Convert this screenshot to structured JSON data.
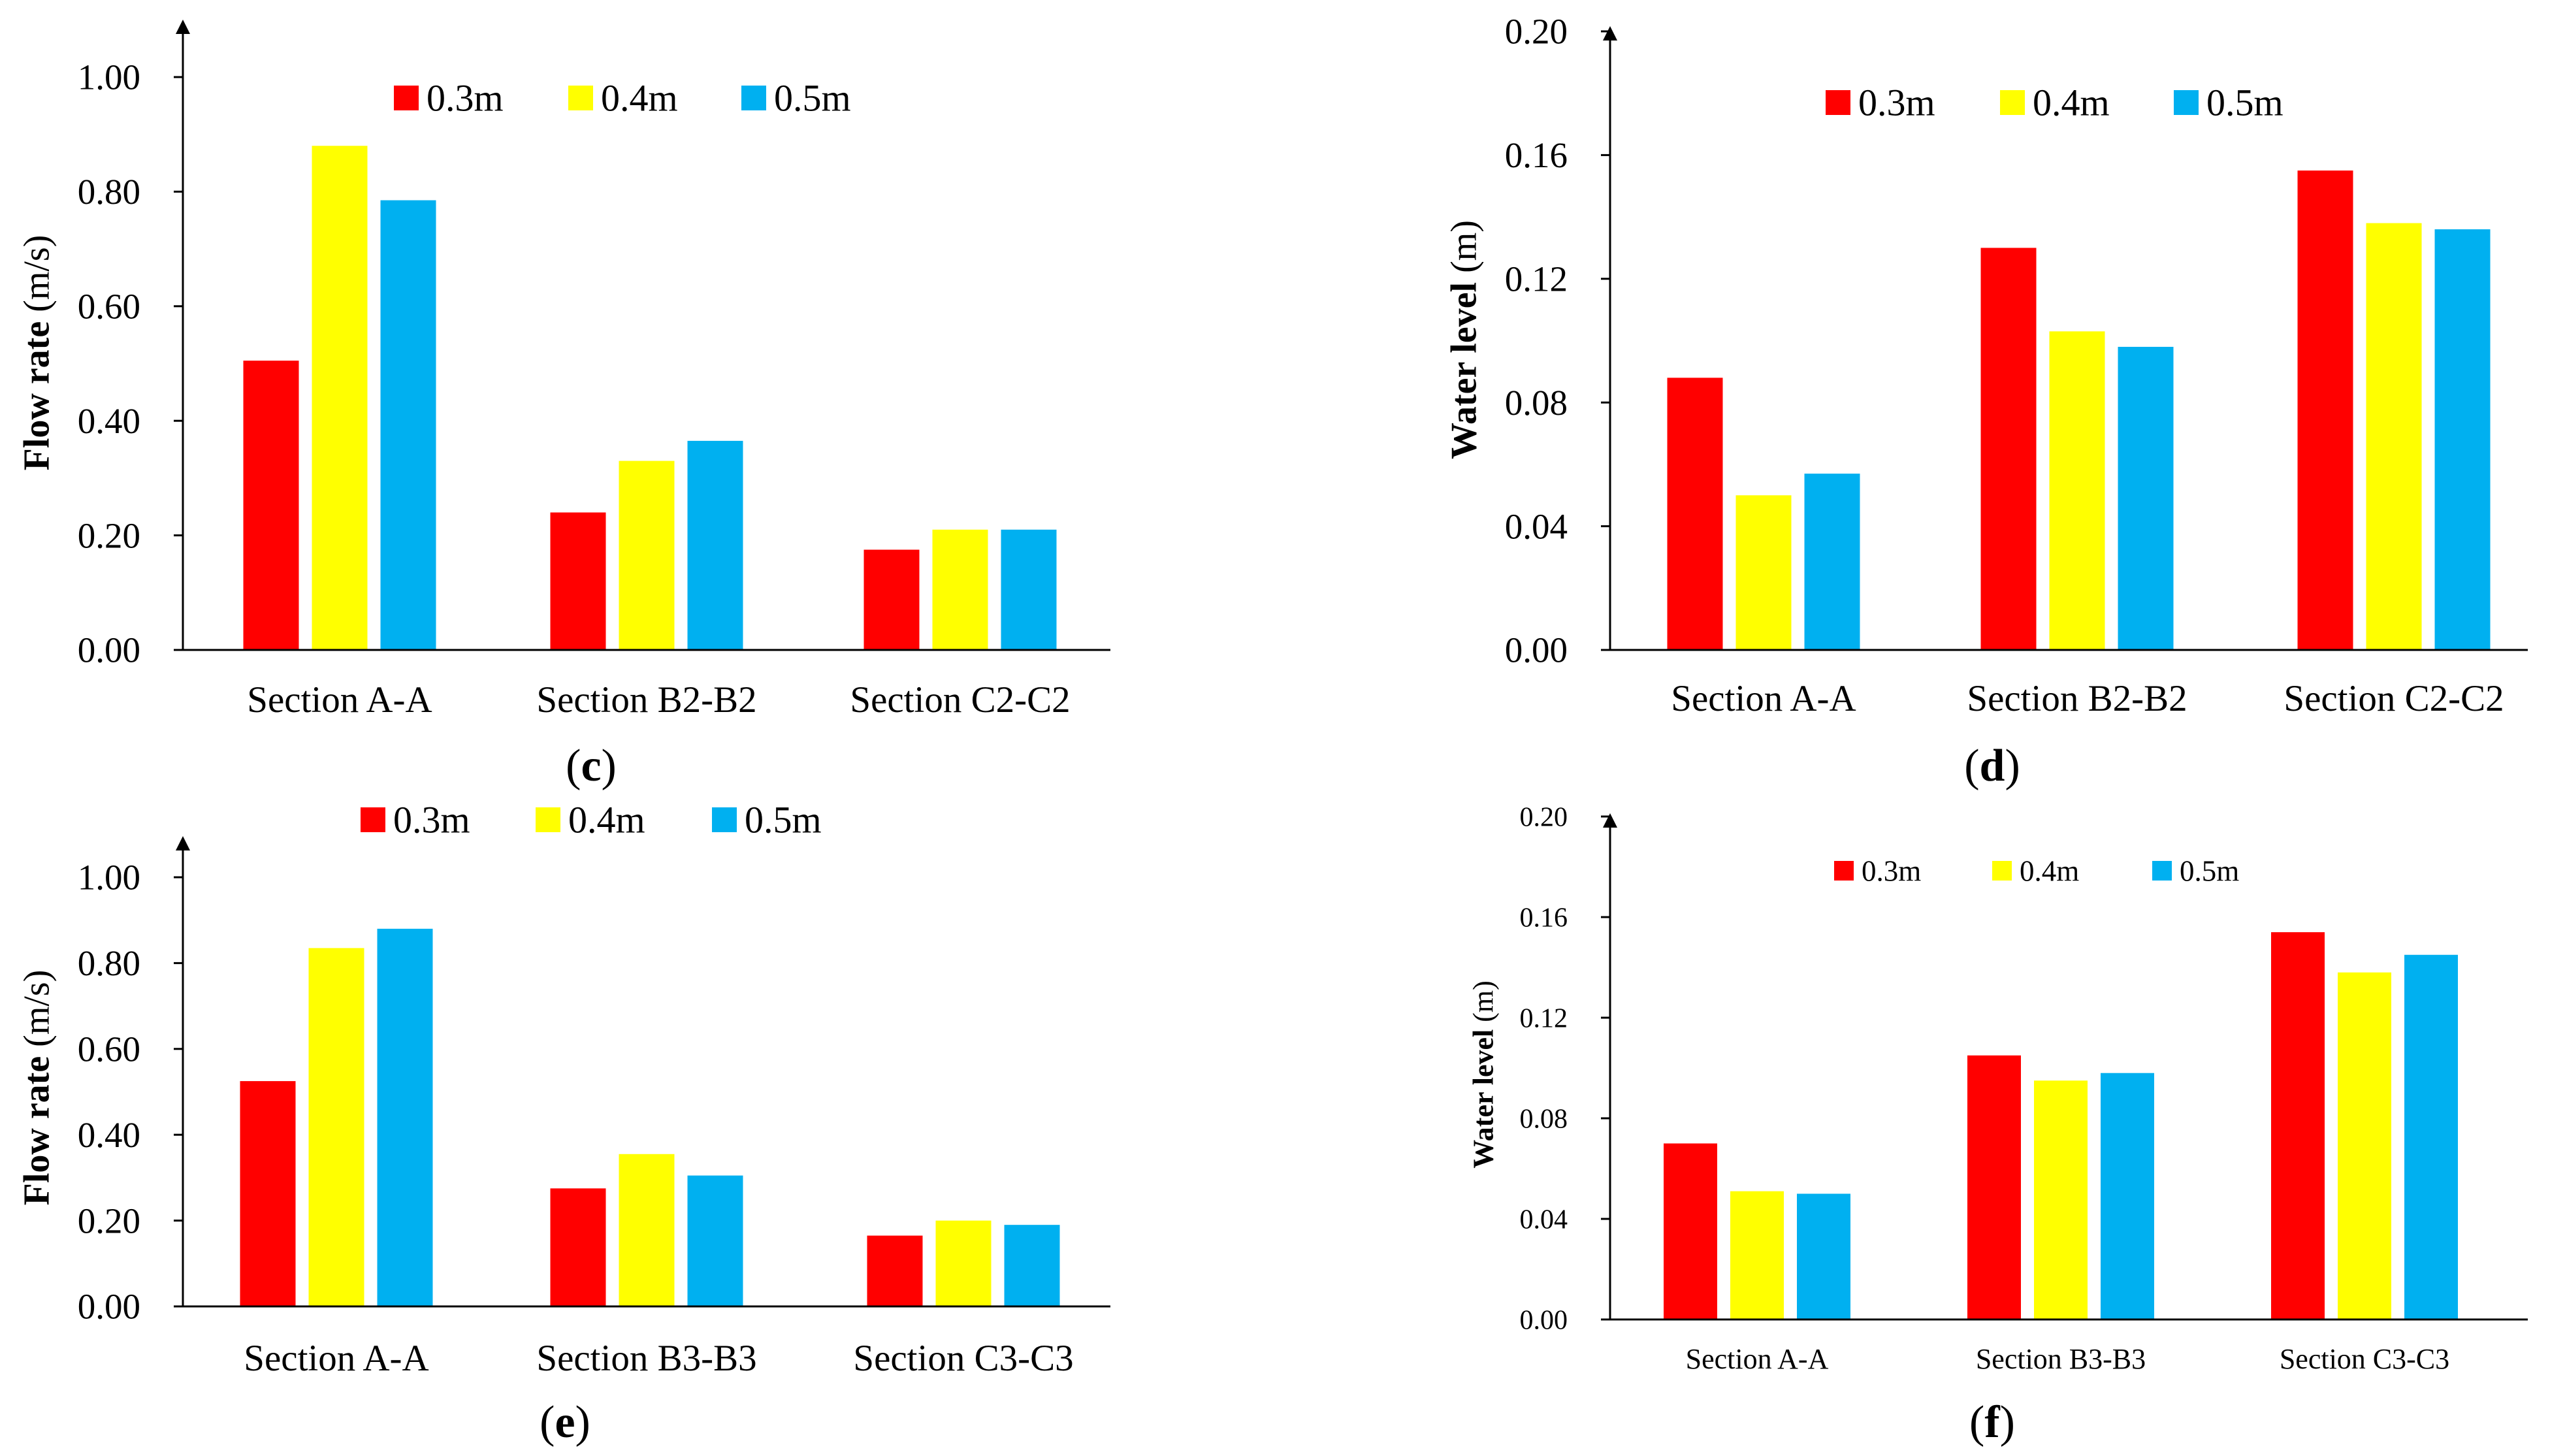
{
  "colors": {
    "s03": "#FF0000",
    "s04": "#FFFF00",
    "s05": "#00B0F0",
    "axis": "#000000"
  },
  "chart_data": [
    {
      "id": "c",
      "type": "bar",
      "panel_label": "c",
      "ylabel": "Flow rate (m/s)",
      "ylabel_bold": "Flow rate",
      "ylabel_unit": " (m/s)",
      "categories": [
        "Section A-A",
        "Section B2-B2",
        "Section C2-C2"
      ],
      "ylim": [
        0,
        1.0
      ],
      "yticks": [
        "0.00",
        "0.20",
        "0.40",
        "0.60",
        "0.80",
        "1.00"
      ],
      "ytick_values": [
        0,
        0.2,
        0.4,
        0.6,
        0.8,
        1.0
      ],
      "legend_placement": "top-center",
      "series": [
        {
          "name": "0.3m",
          "values": [
            0.505,
            0.24,
            0.175
          ]
        },
        {
          "name": "0.4m",
          "values": [
            0.88,
            0.33,
            0.21
          ]
        },
        {
          "name": "0.5m",
          "values": [
            0.785,
            0.365,
            0.21
          ]
        }
      ]
    },
    {
      "id": "d",
      "type": "bar",
      "panel_label": "d",
      "ylabel": "Water level (m)",
      "ylabel_bold": "Water level",
      "ylabel_unit": " (m)",
      "categories": [
        "Section A-A",
        "Section B2-B2",
        "Section C2-C2"
      ],
      "ylim": [
        0,
        0.2
      ],
      "yticks": [
        "0.00",
        "0.04",
        "0.08",
        "0.12",
        "0.16",
        "0.20"
      ],
      "ytick_values": [
        0,
        0.04,
        0.08,
        0.12,
        0.16,
        0.2
      ],
      "legend_placement": "top-center",
      "series": [
        {
          "name": "0.3m",
          "values": [
            0.088,
            0.13,
            0.155
          ]
        },
        {
          "name": "0.4m",
          "values": [
            0.05,
            0.103,
            0.138
          ]
        },
        {
          "name": "0.5m",
          "values": [
            0.057,
            0.098,
            0.136
          ]
        }
      ]
    },
    {
      "id": "e",
      "type": "bar",
      "panel_label": "e",
      "ylabel": "Flow rate (m/s)",
      "ylabel_bold": "Flow rate",
      "ylabel_unit": " (m/s)",
      "categories": [
        "Section A-A",
        "Section B3-B3",
        "Section C3-C3"
      ],
      "ylim": [
        0,
        1.0
      ],
      "yticks": [
        "0.00",
        "0.20",
        "0.40",
        "0.60",
        "0.80",
        "1.00"
      ],
      "ytick_values": [
        0,
        0.2,
        0.4,
        0.6,
        0.8,
        1.0
      ],
      "legend_placement": "top-center",
      "series": [
        {
          "name": "0.3m",
          "values": [
            0.525,
            0.275,
            0.165
          ]
        },
        {
          "name": "0.4m",
          "values": [
            0.835,
            0.355,
            0.2
          ]
        },
        {
          "name": "0.5m",
          "values": [
            0.88,
            0.305,
            0.19
          ]
        }
      ]
    },
    {
      "id": "f",
      "type": "bar",
      "panel_label": "f",
      "ylabel": "Water level (m)",
      "ylabel_bold": "Water level",
      "ylabel_unit": " (m)",
      "categories": [
        "Section A-A",
        "Section B3-B3",
        "Section C3-C3"
      ],
      "ylim": [
        0,
        0.2
      ],
      "yticks": [
        "0.00",
        "0.04",
        "0.08",
        "0.12",
        "0.16",
        "0.20"
      ],
      "ytick_values": [
        0,
        0.04,
        0.08,
        0.12,
        0.16,
        0.2
      ],
      "legend_placement": "top-center",
      "series": [
        {
          "name": "0.3m",
          "values": [
            0.07,
            0.105,
            0.154
          ]
        },
        {
          "name": "0.4m",
          "values": [
            0.051,
            0.095,
            0.138
          ]
        },
        {
          "name": "0.5m",
          "values": [
            0.05,
            0.098,
            0.145
          ]
        }
      ]
    }
  ]
}
